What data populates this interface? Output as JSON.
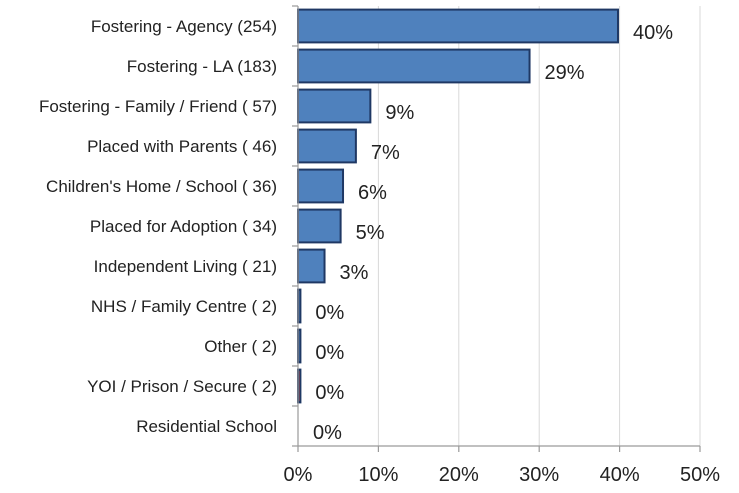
{
  "chart_data": {
    "type": "bar",
    "orientation": "horizontal",
    "title": "",
    "xlabel": "",
    "ylabel": "",
    "xlim": [
      0,
      50
    ],
    "x_ticks": [
      "0%",
      "10%",
      "20%",
      "30%",
      "40%",
      "50%"
    ],
    "x_tick_values": [
      0,
      10,
      20,
      30,
      40,
      50
    ],
    "grid": true,
    "legend": "none",
    "categories": [
      "Fostering - Agency (254)",
      "Fostering - LA (183)",
      "Fostering - Family / Friend ( 57)",
      "Placed with Parents ( 46)",
      "Children's Home / School ( 36)",
      "Placed for Adoption ( 34)",
      "Independent Living ( 21)",
      "NHS / Family Centre (  2)",
      "Other (  2)",
      "YOI / Prison / Secure (  2)",
      "Residential School"
    ],
    "values": [
      39.8,
      28.8,
      9.0,
      7.2,
      5.6,
      5.3,
      3.3,
      0.3,
      0.3,
      0.3,
      0.0
    ],
    "data_labels": [
      "40%",
      "29%",
      "9%",
      "7%",
      "6%",
      "5%",
      "3%",
      "0%",
      "0%",
      "0%",
      "0%"
    ],
    "bar_colors": [
      "#4f81bd",
      "#4f81bd",
      "#4f81bd",
      "#4f81bd",
      "#4f81bd",
      "#4f81bd",
      "#4f81bd",
      "#4f81bd",
      "#4f81bd",
      "#c0504d",
      "#4f81bd"
    ],
    "bar_border_color": "#1f3864"
  }
}
